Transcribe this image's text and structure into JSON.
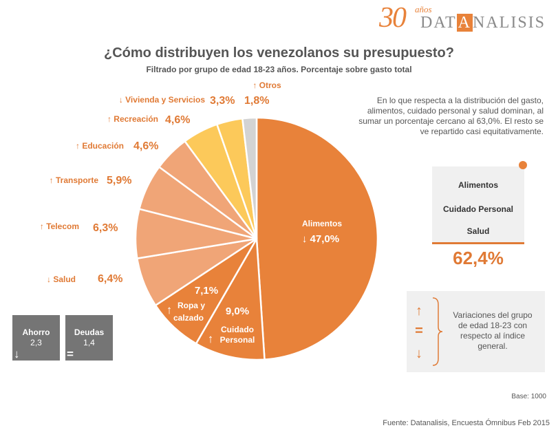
{
  "logo": {
    "number": "30",
    "anos": "años",
    "brand_pre": "DAT",
    "brand_hl": "A",
    "brand_post": "NALISIS"
  },
  "title": "¿Cómo distribuyen los venezolanos su presupuesto?",
  "subtitle": "Filtrado por grupo de edad 18-23 años. Porcentaje sobre gasto total",
  "chart_data": {
    "type": "pie",
    "title": "¿Cómo distribuyen los venezolanos su presupuesto?",
    "slices": [
      {
        "label": "Alimentos",
        "value": 47.0,
        "value_label": "47,0%",
        "trend": "down",
        "color": "#e8823a"
      },
      {
        "label": "Cuidado Personal",
        "value": 9.0,
        "value_label": "9,0%",
        "trend": "up",
        "color": "#e8823a"
      },
      {
        "label": "Ropa y calzado",
        "value": 7.1,
        "value_label": "7,1%",
        "trend": "up",
        "color": "#e8823a"
      },
      {
        "label": "Salud",
        "value": 6.4,
        "value_label": "6,4%",
        "trend": "down",
        "color": "#f0a577"
      },
      {
        "label": "Telecom",
        "value": 6.3,
        "value_label": "6,3%",
        "trend": "up",
        "color": "#f0a577"
      },
      {
        "label": "Transporte",
        "value": 5.9,
        "value_label": "5,9%",
        "trend": "up",
        "color": "#f0a577"
      },
      {
        "label": "Educación",
        "value": 4.6,
        "value_label": "4,6%",
        "trend": "up",
        "color": "#f0a577"
      },
      {
        "label": "Recreación",
        "value": 4.6,
        "value_label": "4,6%",
        "trend": "up",
        "color": "#fcc95a"
      },
      {
        "label": "Vivienda y Servicios",
        "value": 3.3,
        "value_label": "3,3%",
        "trend": "down",
        "color": "#fcc95a"
      },
      {
        "label": "Otros",
        "value": 1.8,
        "value_label": "1,8%",
        "trend": "up",
        "color": "#d3d3d3"
      }
    ]
  },
  "description": "En lo que respecta a la distribución del gasto, alimentos, cuidado personal y salud dominan, al sumar un porcentaje cercano al 63,0%. El resto se ve repartido casi equitativamente.",
  "summary": {
    "items": [
      "Alimentos",
      "Cuidado Personal",
      "Salud"
    ],
    "total": "62,4%"
  },
  "legend": {
    "up": "↑",
    "equal": "=",
    "down": "↓",
    "text": "Variaciones del grupo de edad 18-23 con respecto al índice general."
  },
  "ahorro": {
    "label": "Ahorro",
    "value": "2,3",
    "indicator": "↓"
  },
  "deudas": {
    "label": "Deudas",
    "value": "1,4",
    "indicator": "="
  },
  "base": "Base: 1000",
  "source": "Fuente: Datanalisis, Encuesta Ómnibus Feb 2015"
}
